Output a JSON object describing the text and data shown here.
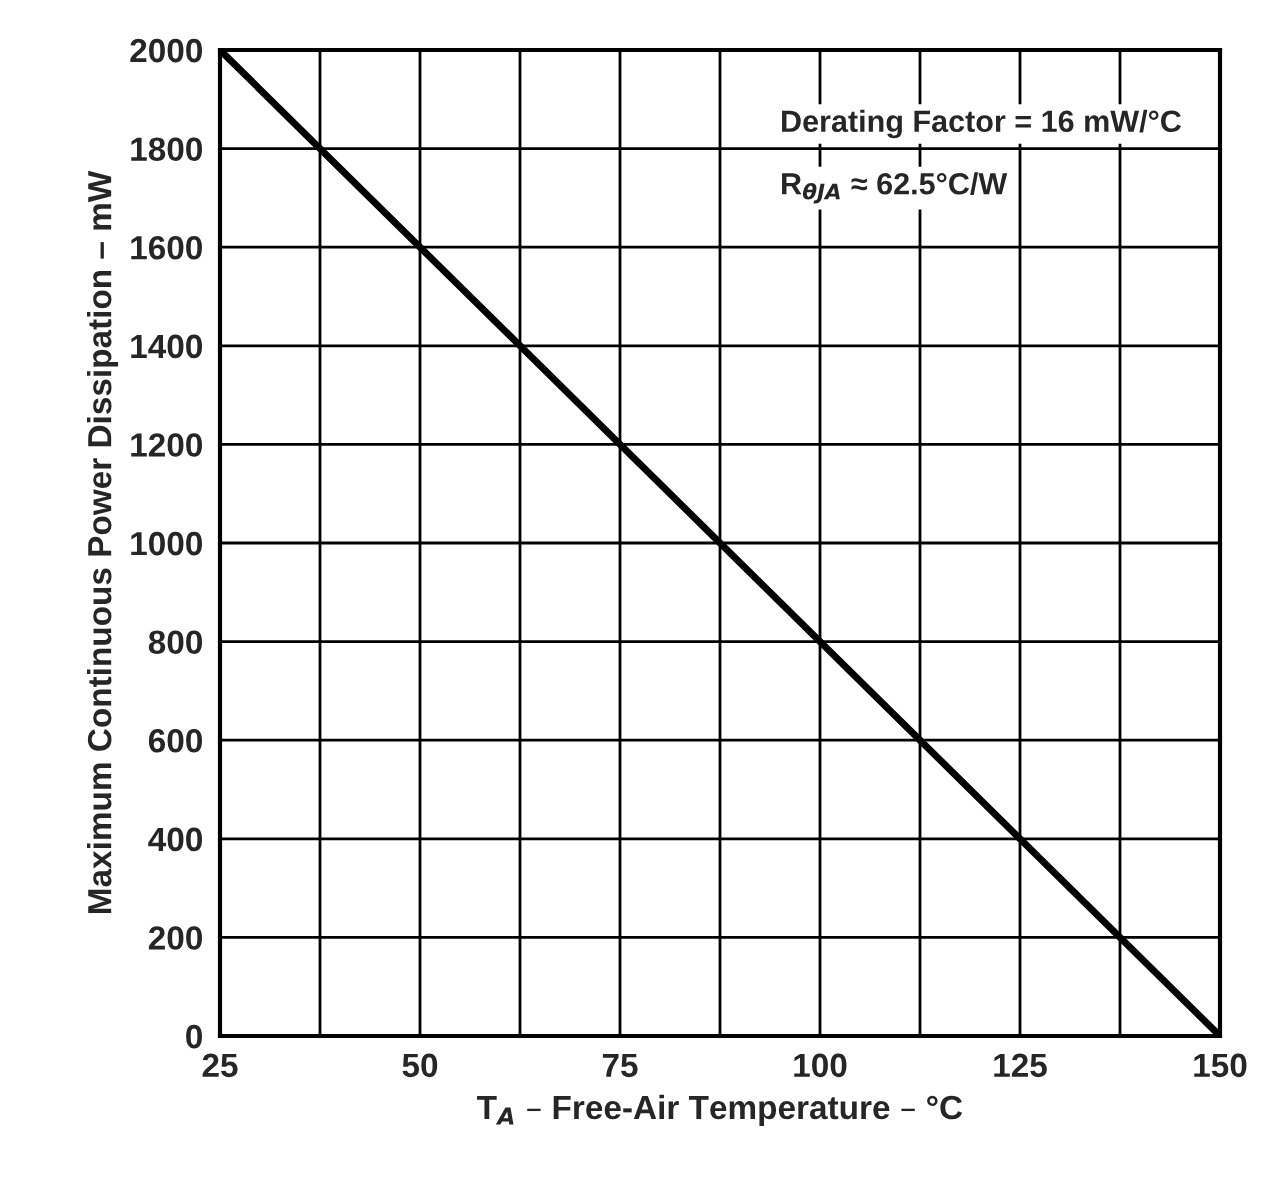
{
  "chart_data": {
    "type": "line",
    "xlabel": "T$_{A}$ – Free-Air Temperature – °C",
    "ylabel": "Maximum Continuous Power Dissipation – mW",
    "x": [
      25,
      150
    ],
    "series": [
      {
        "color": "#000000",
        "values": [
          2000,
          0
        ]
      }
    ],
    "xlim": [
      25,
      150
    ],
    "xticks": [
      25,
      {
        "value": 37.5,
        "label": null
      },
      50,
      {
        "value": 62.5,
        "label": null
      },
      75,
      {
        "value": 87.5,
        "label": null
      },
      100,
      {
        "value": 112.5,
        "label": null
      },
      125,
      {
        "value": 137.5,
        "label": null
      },
      150
    ],
    "ylim": [
      0,
      2000
    ],
    "yticks": [
      0,
      200,
      400,
      600,
      800,
      1000,
      1200,
      1400,
      1600,
      1800,
      2000
    ],
    "grid": true,
    "line_style": "solid",
    "marker": "none",
    "annotations": [
      "Derating Factor = 16 mW/°C",
      "R$_{θJA}$ ≈ 62.5°C/W"
    ]
  }
}
